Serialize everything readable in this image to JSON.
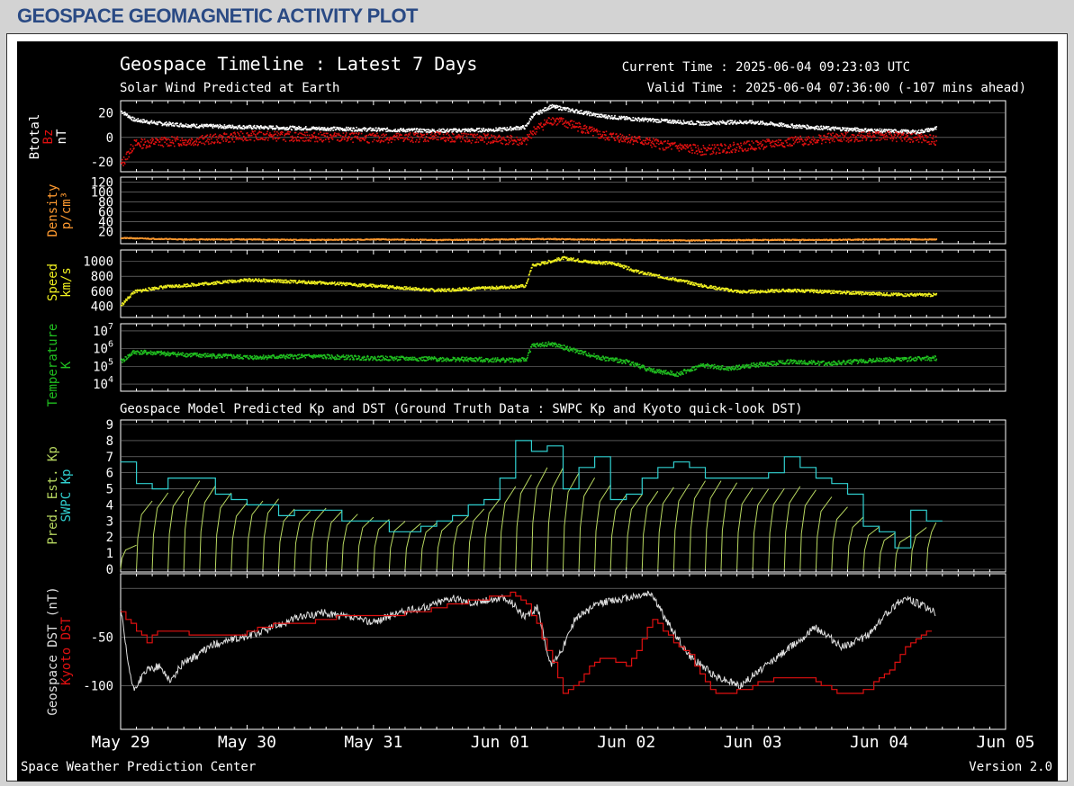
{
  "header": {
    "title": "GEOSPACE GEOMAGNETIC ACTIVITY PLOT"
  },
  "plot": {
    "title": "Geospace Timeline : Latest 7 Days",
    "subtitle": "Solar Wind Predicted at Earth",
    "current_time": "Current Time : 2025-06-04 09:23:03 UTC",
    "valid_time": "Valid Time : 2025-06-04 07:36:00 (-107 mins ahead)",
    "model_title": "Geospace Model Predicted Kp and DST (Ground Truth Data : SWPC Kp and Kyoto quick-look DST)",
    "footer_left": "Space Weather Prediction Center",
    "footer_right": "Version 2.0"
  },
  "colors": {
    "background": "#000000",
    "btotal": "#ffffff",
    "bz": "#e01010",
    "density": "#ff9a30",
    "speed": "#f0f020",
    "temperature": "#20c020",
    "pred_kp": "#b8d860",
    "swpc_kp": "#30d0d0",
    "geospace_dst": "#e0e0e0",
    "kyoto_dst": "#e01010",
    "grid": "#8a8a8a"
  },
  "chart_data": [
    {
      "panel": "magnetic-field",
      "type": "scatter",
      "ylabel_parts": [
        "Btotal",
        "Bz",
        "nT"
      ],
      "yticks": [
        20,
        0,
        -20
      ],
      "ylim": [
        -28,
        30
      ],
      "series": [
        {
          "name": "Btotal",
          "x_day": [
            0.0,
            0.1,
            0.3,
            0.6,
            1.0,
            1.5,
            2.0,
            2.5,
            3.0,
            3.2,
            3.25,
            3.4,
            3.6,
            3.8,
            4.0,
            4.3,
            4.6,
            4.8,
            5.0,
            5.3,
            5.6,
            6.0,
            6.3,
            6.45
          ],
          "y": [
            22,
            15,
            12,
            10,
            9,
            8,
            7,
            6,
            7,
            9,
            18,
            26,
            22,
            18,
            16,
            14,
            12,
            13,
            13,
            10,
            8,
            6,
            5,
            8
          ]
        },
        {
          "name": "Bz",
          "x_day": [
            0.0,
            0.1,
            0.3,
            0.6,
            1.0,
            1.5,
            2.0,
            2.5,
            3.0,
            3.2,
            3.25,
            3.4,
            3.6,
            3.8,
            4.0,
            4.3,
            4.6,
            4.8,
            5.0,
            5.3,
            5.6,
            6.0,
            6.3,
            6.45
          ],
          "y": [
            -22,
            -5,
            -3,
            -2,
            2,
            1,
            0,
            1,
            -1,
            -3,
            5,
            15,
            10,
            2,
            0,
            -6,
            -10,
            -8,
            -6,
            -3,
            0,
            2,
            0,
            -2
          ]
        }
      ]
    },
    {
      "panel": "density",
      "type": "scatter",
      "ylabel_parts": [
        "Density",
        "p/cm³"
      ],
      "yticks": [
        120,
        100,
        80,
        60,
        40,
        20
      ],
      "ylim": [
        -5,
        130
      ],
      "series": [
        {
          "name": "Density",
          "x_day": [
            0.0,
            0.5,
            1.0,
            1.5,
            2.0,
            2.5,
            3.0,
            3.3,
            3.6,
            4.0,
            4.5,
            5.0,
            5.5,
            6.0,
            6.45
          ],
          "y": [
            8,
            5,
            5,
            4,
            5,
            4,
            5,
            6,
            5,
            4,
            3,
            4,
            4,
            5,
            5
          ]
        }
      ]
    },
    {
      "panel": "speed",
      "type": "scatter",
      "ylabel_parts": [
        "Speed",
        "km/s"
      ],
      "yticks": [
        1000,
        800,
        600,
        400
      ],
      "ylim": [
        250,
        1150
      ],
      "series": [
        {
          "name": "Speed",
          "x_day": [
            0.0,
            0.1,
            0.3,
            0.6,
            1.0,
            1.3,
            1.6,
            2.0,
            2.5,
            3.0,
            3.2,
            3.25,
            3.5,
            3.7,
            3.9,
            4.1,
            4.4,
            4.6,
            4.9,
            5.1,
            5.3,
            5.6,
            5.9,
            6.2,
            6.45
          ],
          "y": [
            420,
            600,
            660,
            700,
            760,
            740,
            720,
            680,
            620,
            660,
            680,
            950,
            1050,
            1000,
            980,
            860,
            760,
            680,
            600,
            610,
            620,
            600,
            580,
            560,
            560
          ]
        }
      ]
    },
    {
      "panel": "temperature",
      "type": "scatter",
      "ylabel_parts": [
        "Temperature",
        "K"
      ],
      "yticks": [
        "10^7",
        "10^6",
        "10^5",
        "10^4"
      ],
      "ylim_log10": [
        3.6,
        7.4
      ],
      "series": [
        {
          "name": "Temperature",
          "x_day": [
            0.0,
            0.1,
            0.5,
            1.0,
            1.5,
            2.0,
            2.5,
            3.0,
            3.2,
            3.25,
            3.4,
            3.6,
            3.8,
            4.0,
            4.2,
            4.4,
            4.6,
            4.8,
            5.0,
            5.3,
            5.6,
            6.0,
            6.45
          ],
          "log10_y": [
            5.3,
            5.85,
            5.7,
            5.55,
            5.6,
            5.5,
            5.45,
            5.4,
            5.4,
            6.2,
            6.3,
            5.9,
            5.5,
            5.3,
            4.8,
            4.6,
            5.1,
            4.9,
            5.1,
            5.3,
            5.2,
            5.4,
            5.5
          ]
        }
      ]
    },
    {
      "panel": "kp",
      "type": "line",
      "ylabel_parts": [
        "Pred. Est. Kp",
        "SWPC Kp"
      ],
      "yticks": [
        9,
        8,
        7,
        6,
        5,
        4,
        3,
        2,
        1,
        0
      ],
      "ylim": [
        0,
        9
      ],
      "series": [
        {
          "name": "SWPC Kp",
          "x_day": [
            0.0,
            0.125,
            0.25,
            0.375,
            0.5,
            0.625,
            0.75,
            0.875,
            1.0,
            1.125,
            1.25,
            1.375,
            1.5,
            1.625,
            1.75,
            1.875,
            2.0,
            2.125,
            2.25,
            2.375,
            2.5,
            2.625,
            2.75,
            2.875,
            3.0,
            3.125,
            3.25,
            3.375,
            3.5,
            3.625,
            3.75,
            3.875,
            4.0,
            4.125,
            4.25,
            4.375,
            4.5,
            4.625,
            4.75,
            4.875,
            5.0,
            5.125,
            5.25,
            5.375,
            5.5,
            5.625,
            5.75,
            5.875,
            6.0,
            6.125,
            6.25,
            6.375
          ],
          "y": [
            6.67,
            5.33,
            5.0,
            5.67,
            5.67,
            5.67,
            4.67,
            4.33,
            4.0,
            4.0,
            3.33,
            3.67,
            3.67,
            3.67,
            3.0,
            3.0,
            3.0,
            2.33,
            2.33,
            2.67,
            3.0,
            3.33,
            4.0,
            4.33,
            5.67,
            8.0,
            7.33,
            7.67,
            5.0,
            6.33,
            7.0,
            4.33,
            4.67,
            5.67,
            6.33,
            6.67,
            6.33,
            5.67,
            5.67,
            5.67,
            5.67,
            6.0,
            7.0,
            6.33,
            5.67,
            5.33,
            4.67,
            2.67,
            2.33,
            1.33,
            3.67,
            3.0
          ]
        },
        {
          "name": "Pred. Est. Kp",
          "x_day": [
            0.0,
            0.05,
            0.1,
            0.15,
            0.2,
            0.3,
            0.5,
            0.7,
            0.9,
            1.1,
            1.3,
            1.5,
            1.7,
            1.9,
            2.1,
            2.3,
            2.5,
            2.7,
            2.9,
            3.1,
            3.3,
            3.5,
            3.7,
            3.9,
            4.1,
            4.3,
            4.5,
            4.7,
            4.9,
            5.1,
            5.3,
            5.5,
            5.7,
            5.9,
            6.1,
            6.3,
            6.45
          ],
          "y": [
            1.5,
            6.0,
            5.5,
            3.0,
            5.0,
            4.5,
            5.5,
            5.0,
            4.0,
            4.5,
            3.5,
            3.8,
            3.5,
            3.2,
            3.0,
            2.8,
            3.0,
            3.5,
            4.5,
            5.8,
            6.5,
            6.0,
            5.5,
            4.5,
            4.8,
            5.2,
            5.5,
            5.5,
            5.0,
            5.0,
            5.2,
            4.5,
            3.5,
            2.5,
            2.0,
            2.8,
            3.0
          ]
        }
      ]
    },
    {
      "panel": "dst",
      "type": "line",
      "ylabel_parts": [
        "Geospace DST (nT)",
        "Kyoto DST"
      ],
      "yticks": [
        -50,
        -100
      ],
      "ylim": [
        -145,
        15
      ],
      "series": [
        {
          "name": "Geospace DST (nT)",
          "x_day": [
            0.0,
            0.05,
            0.1,
            0.2,
            0.3,
            0.4,
            0.5,
            0.6,
            0.7,
            0.8,
            1.0,
            1.2,
            1.4,
            1.6,
            1.8,
            2.0,
            2.2,
            2.4,
            2.6,
            2.8,
            3.0,
            3.1,
            3.2,
            3.3,
            3.4,
            3.5,
            3.6,
            3.8,
            4.0,
            4.2,
            4.3,
            4.5,
            4.7,
            4.9,
            5.1,
            5.3,
            5.5,
            5.7,
            5.9,
            6.0,
            6.1,
            6.2,
            6.3,
            6.45
          ],
          "y": [
            -20,
            -70,
            -105,
            -85,
            -80,
            -95,
            -75,
            -70,
            -60,
            -55,
            -50,
            -40,
            -30,
            -25,
            -30,
            -35,
            -25,
            -20,
            -10,
            -15,
            -10,
            -15,
            -30,
            -20,
            -80,
            -60,
            -30,
            -15,
            -10,
            -5,
            -30,
            -70,
            -90,
            -100,
            -80,
            -60,
            -40,
            -60,
            -50,
            -35,
            -20,
            -10,
            -15,
            -25
          ]
        },
        {
          "name": "Kyoto DST",
          "x_day": [
            0.0,
            0.1,
            0.2,
            0.3,
            0.5,
            0.7,
            0.9,
            1.1,
            1.3,
            1.5,
            1.7,
            1.9,
            2.1,
            2.3,
            2.5,
            2.7,
            2.9,
            3.1,
            3.2,
            3.3,
            3.4,
            3.5,
            3.6,
            3.7,
            3.8,
            4.0,
            4.1,
            4.2,
            4.3,
            4.5,
            4.7,
            4.9,
            5.1,
            5.3,
            5.5,
            5.7,
            5.9,
            6.1,
            6.2,
            6.3,
            6.4
          ],
          "y": [
            -25,
            -40,
            -55,
            -45,
            -45,
            -50,
            -50,
            -40,
            -35,
            -35,
            -30,
            -30,
            -28,
            -25,
            -20,
            -15,
            -10,
            -5,
            -15,
            -40,
            -70,
            -110,
            -100,
            -80,
            -70,
            -80,
            -60,
            -30,
            -45,
            -70,
            -110,
            -105,
            -95,
            -90,
            -95,
            -110,
            -105,
            -80,
            -60,
            -50,
            -40
          ]
        }
      ]
    }
  ],
  "x_axis": {
    "tick_labels": [
      "May 29",
      "May 30",
      "May 31",
      "Jun 01",
      "Jun 02",
      "Jun 03",
      "Jun 04",
      "Jun 05"
    ],
    "range_days": [
      0,
      7
    ]
  }
}
